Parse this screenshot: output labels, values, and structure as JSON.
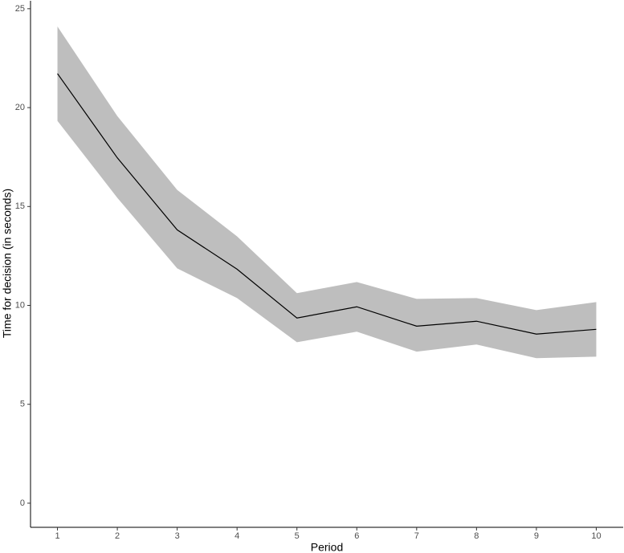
{
  "chart_data": {
    "type": "line",
    "x_label": "Period",
    "y_label": "Time for decision (in seconds)",
    "x": [
      1,
      2,
      3,
      4,
      5,
      6,
      7,
      8,
      9,
      10
    ],
    "series": [
      {
        "color": "#000000",
        "band_color": "#bebebe",
        "values": [
          21.72,
          17.46,
          13.82,
          11.83,
          9.36,
          9.93,
          8.95,
          9.2,
          8.55,
          8.79
        ],
        "lower": [
          19.33,
          15.44,
          11.87,
          10.37,
          8.14,
          8.67,
          7.66,
          8.02,
          7.33,
          7.41
        ],
        "upper": [
          24.1,
          19.57,
          15.84,
          13.49,
          10.62,
          11.18,
          10.33,
          10.37,
          9.76,
          10.17
        ]
      }
    ],
    "xlim": [
      0.55,
      10.45
    ],
    "xticks": [
      1,
      2,
      3,
      4,
      5,
      6,
      7,
      8,
      9,
      10
    ],
    "ylim": [
      -1.22,
      25.4
    ],
    "yticks": [
      0,
      5,
      10,
      15,
      20,
      25
    ],
    "grid": false
  }
}
